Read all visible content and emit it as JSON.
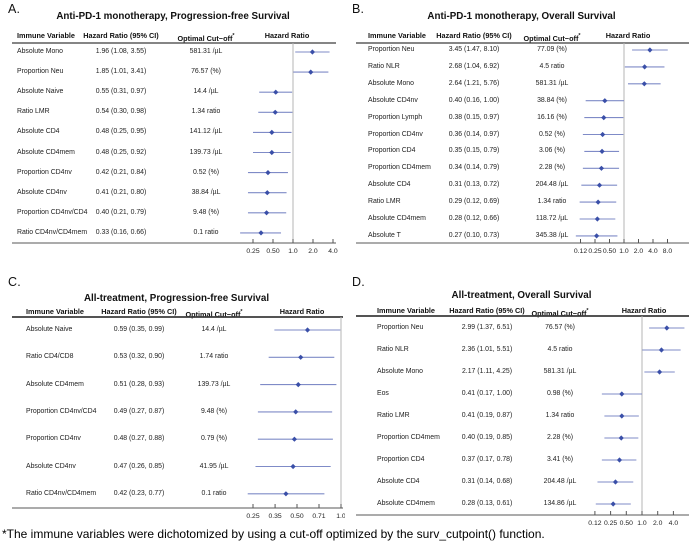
{
  "figure": {
    "footnote": "*The immune variables were dichotomized by using a cut-off optimized by the surv_cutpoint() function."
  },
  "columns": {
    "variable": "Immune Variable",
    "hr_ci": "Hazard Ratio (95% CI)",
    "cutoff": "Optimal Cut−off",
    "cutoff_sup": "*",
    "plot": "Hazard Ratio"
  },
  "colors": {
    "ci_line": "#7f8bc7",
    "marker": "#3a4fa8",
    "ref_line": "#b5b5b5",
    "header_rule": "#3c3c3c",
    "axis_line": "#8f8f8f",
    "tick": "#555555",
    "tick_text": "#222222"
  },
  "chart_data": [
    {
      "type": "forest",
      "panel_label": "A.",
      "title": "Anti-PD-1 monotherapy, Progression-free Survival",
      "x_scale": "log",
      "ref_line": 1.0,
      "xlim": [
        0.15,
        4.5
      ],
      "x_ticks": [
        {
          "value": 0.25,
          "label": "0.25"
        },
        {
          "value": 0.5,
          "label": "0.50"
        },
        {
          "value": 1.0,
          "label": "1.0"
        },
        {
          "value": 2.0,
          "label": "2.0"
        },
        {
          "value": 4.0,
          "label": "4.0"
        }
      ],
      "rows": [
        {
          "variable": "Absolute Mono",
          "hr_ci": "1.96 (1.08, 3.55)",
          "cutoff": "581.31 /µL",
          "hr": 1.96,
          "ci_low": 1.08,
          "ci_high": 3.55
        },
        {
          "variable": "Proportion Neu",
          "hr_ci": "1.85 (1.01, 3.41)",
          "cutoff": "76.57 (%)",
          "hr": 1.85,
          "ci_low": 1.01,
          "ci_high": 3.41
        },
        {
          "variable": "Absolute Naive",
          "hr_ci": "0.55 (0.31, 0.97)",
          "cutoff": "14.4 /µL",
          "hr": 0.55,
          "ci_low": 0.31,
          "ci_high": 0.97
        },
        {
          "variable": "Ratio LMR",
          "hr_ci": "0.54 (0.30, 0.98)",
          "cutoff": "1.34 ratio",
          "hr": 0.54,
          "ci_low": 0.3,
          "ci_high": 0.98
        },
        {
          "variable": "Absolute CD4",
          "hr_ci": "0.48 (0.25, 0.95)",
          "cutoff": "141.12 /µL",
          "hr": 0.48,
          "ci_low": 0.25,
          "ci_high": 0.95
        },
        {
          "variable": "Absolute CD4mem",
          "hr_ci": "0.48 (0.25, 0.92)",
          "cutoff": "139.73 /µL",
          "hr": 0.48,
          "ci_low": 0.25,
          "ci_high": 0.92
        },
        {
          "variable": "Proportion CD4nv",
          "hr_ci": "0.42 (0.21, 0.84)",
          "cutoff": "0.52 (%)",
          "hr": 0.42,
          "ci_low": 0.21,
          "ci_high": 0.84
        },
        {
          "variable": "Absolute CD4nv",
          "hr_ci": "0.41 (0.21, 0.80)",
          "cutoff": "38.84 /µL",
          "hr": 0.41,
          "ci_low": 0.21,
          "ci_high": 0.8
        },
        {
          "variable": "Proportion CD4nv/CD4",
          "hr_ci": "0.40 (0.21, 0.79)",
          "cutoff": "9.48 (%)",
          "hr": 0.4,
          "ci_low": 0.21,
          "ci_high": 0.79
        },
        {
          "variable": "Ratio CD4nv/CD4mem",
          "hr_ci": "0.33 (0.16, 0.66)",
          "cutoff": "0.1 ratio",
          "hr": 0.33,
          "ci_low": 0.16,
          "ci_high": 0.66
        }
      ]
    },
    {
      "type": "forest",
      "panel_label": "B.",
      "title": "Anti-PD-1 monotherapy, Overall Survival",
      "x_scale": "log",
      "ref_line": 1.0,
      "xlim": [
        0.09,
        8.6
      ],
      "x_ticks": [
        {
          "value": 0.125,
          "label": "0.12"
        },
        {
          "value": 0.25,
          "label": "0.25"
        },
        {
          "value": 0.5,
          "label": "0.50"
        },
        {
          "value": 1.0,
          "label": "1.0"
        },
        {
          "value": 2.0,
          "label": "2.0"
        },
        {
          "value": 4.0,
          "label": "4.0"
        },
        {
          "value": 8.0,
          "label": "8.0"
        }
      ],
      "rows": [
        {
          "variable": "Proportion Neu",
          "hr_ci": "3.45 (1.47, 8.10)",
          "cutoff": "77.09 (%)",
          "hr": 3.45,
          "ci_low": 1.47,
          "ci_high": 8.1
        },
        {
          "variable": "Ratio NLR",
          "hr_ci": "2.68 (1.04, 6.92)",
          "cutoff": "4.5 ratio",
          "hr": 2.68,
          "ci_low": 1.04,
          "ci_high": 6.92
        },
        {
          "variable": "Absolute Mono",
          "hr_ci": "2.64 (1.21, 5.76)",
          "cutoff": "581.31 /µL",
          "hr": 2.64,
          "ci_low": 1.21,
          "ci_high": 5.76
        },
        {
          "variable": "Absolute CD4nv",
          "hr_ci": "0.40 (0.16, 1.00)",
          "cutoff": "38.84 (%)",
          "hr": 0.4,
          "ci_low": 0.16,
          "ci_high": 1.0
        },
        {
          "variable": "Proportion Lymph",
          "hr_ci": "0.38 (0.15, 0.97)",
          "cutoff": "16.16 (%)",
          "hr": 0.38,
          "ci_low": 0.15,
          "ci_high": 0.97
        },
        {
          "variable": "Proportion CD4nv",
          "hr_ci": "0.36 (0.14, 0.97)",
          "cutoff": "0.52 (%)",
          "hr": 0.36,
          "ci_low": 0.14,
          "ci_high": 0.97
        },
        {
          "variable": "Proportion CD4",
          "hr_ci": "0.35 (0.15, 0.79)",
          "cutoff": "3.06 (%)",
          "hr": 0.35,
          "ci_low": 0.15,
          "ci_high": 0.79
        },
        {
          "variable": "Proportion CD4mem",
          "hr_ci": "0.34 (0.14, 0.79)",
          "cutoff": "2.28 (%)",
          "hr": 0.34,
          "ci_low": 0.14,
          "ci_high": 0.79
        },
        {
          "variable": "Absolute CD4",
          "hr_ci": "0.31 (0.13, 0.72)",
          "cutoff": "204.48 /µL",
          "hr": 0.31,
          "ci_low": 0.13,
          "ci_high": 0.72
        },
        {
          "variable": "Ratio LMR",
          "hr_ci": "0.29 (0.12, 0.69)",
          "cutoff": "1.34 ratio",
          "hr": 0.29,
          "ci_low": 0.12,
          "ci_high": 0.69
        },
        {
          "variable": "Absolute CD4mem",
          "hr_ci": "0.28 (0.12, 0.66)",
          "cutoff": "118.72 /µL",
          "hr": 0.28,
          "ci_low": 0.12,
          "ci_high": 0.66
        },
        {
          "variable": "Absolute T",
          "hr_ci": "0.27 (0.10, 0.73)",
          "cutoff": "345.38 /µL",
          "hr": 0.27,
          "ci_low": 0.1,
          "ci_high": 0.73
        }
      ]
    },
    {
      "type": "forest",
      "panel_label": "C.",
      "title": "All-treatment, Progression-free Survival",
      "x_scale": "log",
      "ref_line": 1.0,
      "xlim": [
        0.22,
        1.05
      ],
      "x_ticks": [
        {
          "value": 0.25,
          "label": "0.25"
        },
        {
          "value": 0.354,
          "label": "0.35"
        },
        {
          "value": 0.5,
          "label": "0.50"
        },
        {
          "value": 0.707,
          "label": "0.71"
        },
        {
          "value": 1.0,
          "label": "1.0"
        }
      ],
      "rows": [
        {
          "variable": "Absolute Naive",
          "hr_ci": "0.59 (0.35, 0.99)",
          "cutoff": "14.4 /µL",
          "hr": 0.59,
          "ci_low": 0.35,
          "ci_high": 0.99
        },
        {
          "variable": "Ratio CD4/CD8",
          "hr_ci": "0.53 (0.32, 0.90)",
          "cutoff": "1.74 ratio",
          "hr": 0.53,
          "ci_low": 0.32,
          "ci_high": 0.9
        },
        {
          "variable": "Absolute CD4mem",
          "hr_ci": "0.51 (0.28, 0.93)",
          "cutoff": "139.73 /µL",
          "hr": 0.51,
          "ci_low": 0.28,
          "ci_high": 0.93
        },
        {
          "variable": "Proportion CD4nv/CD4",
          "hr_ci": "0.49 (0.27, 0.87)",
          "cutoff": "9.48 (%)",
          "hr": 0.49,
          "ci_low": 0.27,
          "ci_high": 0.87
        },
        {
          "variable": "Proportion CD4nv",
          "hr_ci": "0.48 (0.27, 0.88)",
          "cutoff": "0.79 (%)",
          "hr": 0.48,
          "ci_low": 0.27,
          "ci_high": 0.88
        },
        {
          "variable": "Absolute CD4nv",
          "hr_ci": "0.47 (0.26, 0.85)",
          "cutoff": "41.95 /µL",
          "hr": 0.47,
          "ci_low": 0.26,
          "ci_high": 0.85
        },
        {
          "variable": "Ratio CD4nv/CD4mem",
          "hr_ci": "0.42 (0.23, 0.77)",
          "cutoff": "0.1 ratio",
          "hr": 0.42,
          "ci_low": 0.23,
          "ci_high": 0.77
        }
      ]
    },
    {
      "type": "forest",
      "panel_label": "D.",
      "title": "All-treatment, Overall Survival",
      "x_scale": "log",
      "ref_line": 1.0,
      "xlim": [
        0.11,
        6.6
      ],
      "x_ticks": [
        {
          "value": 0.125,
          "label": "0.12"
        },
        {
          "value": 0.25,
          "label": "0.25"
        },
        {
          "value": 0.5,
          "label": "0.50"
        },
        {
          "value": 1.0,
          "label": "1.0"
        },
        {
          "value": 2.0,
          "label": "2.0"
        },
        {
          "value": 4.0,
          "label": "4.0"
        }
      ],
      "rows": [
        {
          "variable": "Proportion Neu",
          "hr_ci": "2.99 (1.37, 6.51)",
          "cutoff": "76.57 (%)",
          "hr": 2.99,
          "ci_low": 1.37,
          "ci_high": 6.51
        },
        {
          "variable": "Ratio NLR",
          "hr_ci": "2.36 (1.01, 5.51)",
          "cutoff": "4.5 ratio",
          "hr": 2.36,
          "ci_low": 1.01,
          "ci_high": 5.51
        },
        {
          "variable": "Absolute Mono",
          "hr_ci": "2.17 (1.11, 4.25)",
          "cutoff": "581.31 /µL",
          "hr": 2.17,
          "ci_low": 1.11,
          "ci_high": 4.25
        },
        {
          "variable": "Eos",
          "hr_ci": "0.41 (0.17, 1.00)",
          "cutoff": "0.98 (%)",
          "hr": 0.41,
          "ci_low": 0.17,
          "ci_high": 1.0
        },
        {
          "variable": "Ratio LMR",
          "hr_ci": "0.41 (0.19, 0.87)",
          "cutoff": "1.34 ratio",
          "hr": 0.41,
          "ci_low": 0.19,
          "ci_high": 0.87
        },
        {
          "variable": "Proportion CD4mem",
          "hr_ci": "0.40 (0.19, 0.85)",
          "cutoff": "2.28 (%)",
          "hr": 0.4,
          "ci_low": 0.19,
          "ci_high": 0.85
        },
        {
          "variable": "Proportion CD4",
          "hr_ci": "0.37 (0.17, 0.78)",
          "cutoff": "3.41 (%)",
          "hr": 0.37,
          "ci_low": 0.17,
          "ci_high": 0.78
        },
        {
          "variable": "Absolute CD4",
          "hr_ci": "0.31 (0.14, 0.68)",
          "cutoff": "204.48 /µL",
          "hr": 0.31,
          "ci_low": 0.14,
          "ci_high": 0.68
        },
        {
          "variable": "Absolute CD4mem",
          "hr_ci": "0.28 (0.13, 0.61)",
          "cutoff": "134.86 /µL",
          "hr": 0.28,
          "ci_low": 0.13,
          "ci_high": 0.61
        }
      ]
    }
  ]
}
